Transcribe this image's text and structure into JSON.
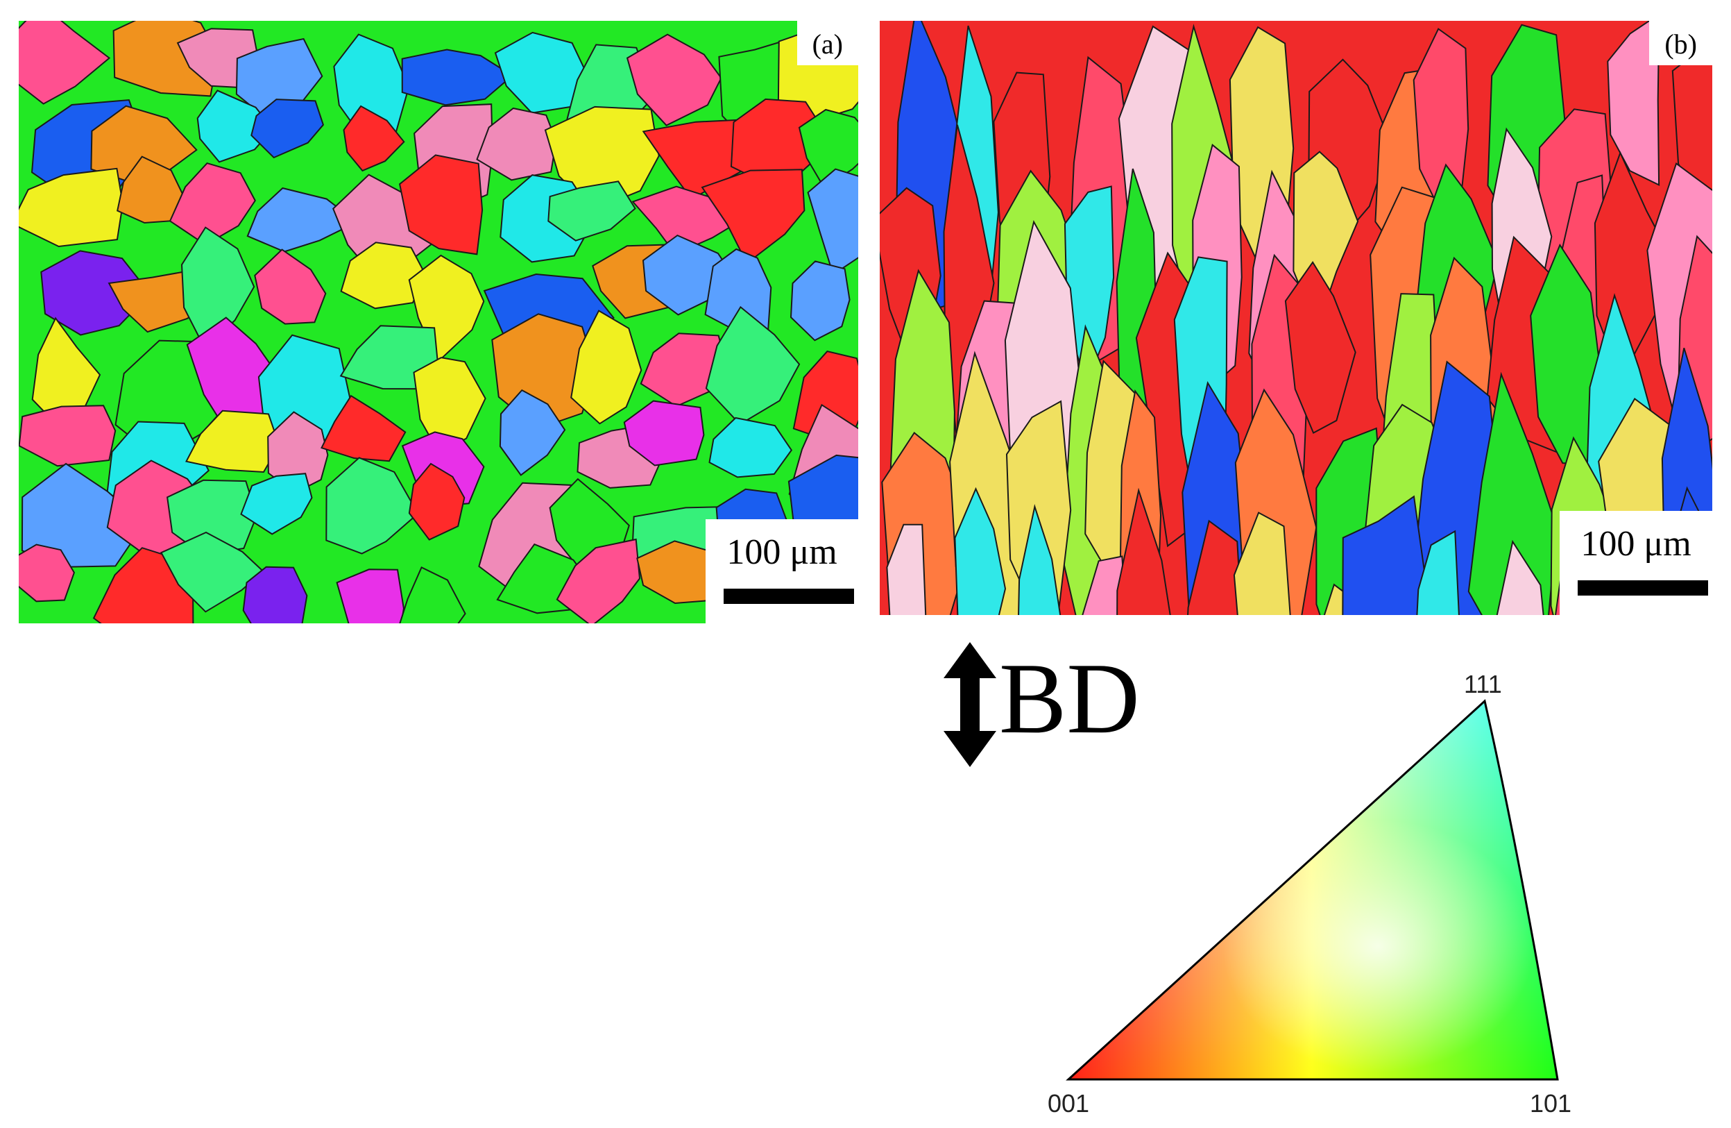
{
  "figure": {
    "panel_a": {
      "label": "(a)",
      "scale_text": "100 μm"
    },
    "panel_b": {
      "label": "(b)",
      "scale_text": "100 μm"
    },
    "direction": {
      "text": "BD"
    },
    "ipf_key": {
      "corners": {
        "c001": "001",
        "c101": "101",
        "c111": "111"
      },
      "colors": {
        "c001": "#ff0000",
        "c101": "#00ff00",
        "c111": "#0000ff"
      }
    },
    "palette_a": [
      "#22e824",
      "#36f07a",
      "#7a22ee",
      "#e830e8",
      "#1a5ef0",
      "#f0921e",
      "#ff2a2a",
      "#f0f020",
      "#ff5090",
      "#5aa0ff",
      "#20e8e8",
      "#f08ab8"
    ],
    "palette_b": [
      "#f02a2a",
      "#24e02a",
      "#ff4a6a",
      "#f0e060",
      "#ff90c0",
      "#30e8e8",
      "#2050f0",
      "#f8d0e0",
      "#ff7a40",
      "#a0f040"
    ]
  }
}
